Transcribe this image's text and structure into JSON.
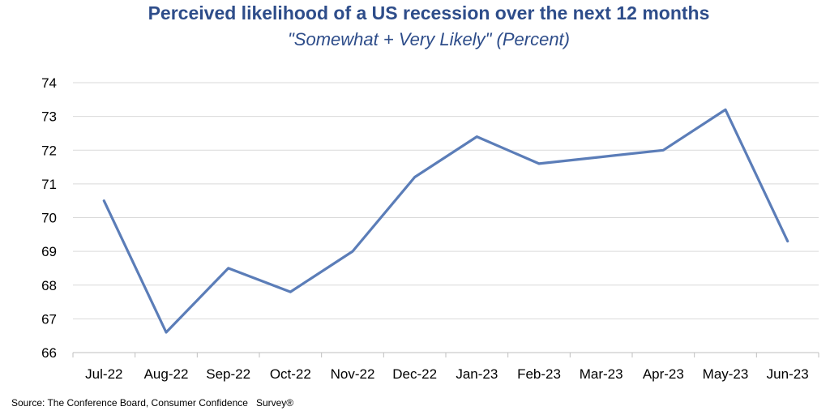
{
  "chart_data": {
    "type": "line",
    "title": "Perceived likelihood of a US recession over the next 12 months",
    "subtitle": "\"Somewhat + Very Likely\" (Percent)",
    "categories": [
      "Jul-22",
      "Aug-22",
      "Sep-22",
      "Oct-22",
      "Nov-22",
      "Dec-22",
      "Jan-23",
      "Feb-23",
      "Mar-23",
      "Apr-23",
      "May-23",
      "Jun-23"
    ],
    "series": [
      {
        "values": [
          70.5,
          66.6,
          68.5,
          67.8,
          69.0,
          71.2,
          72.4,
          71.6,
          71.8,
          72.0,
          73.2,
          69.3
        ],
        "color": "#5b7db8"
      }
    ],
    "ylim": [
      66,
      74
    ],
    "yticks": [
      66,
      67,
      68,
      69,
      70,
      71,
      72,
      73,
      74
    ],
    "grid": true,
    "legend": "none"
  },
  "source": "Source: The Conference Board, Consumer Confidence   Survey®"
}
